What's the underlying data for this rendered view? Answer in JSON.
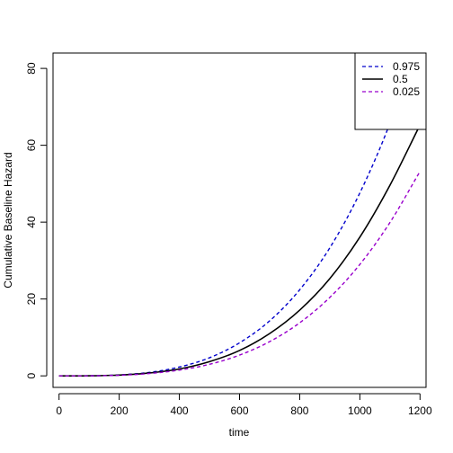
{
  "chart_data": {
    "type": "line",
    "xlabel": "time",
    "ylabel": "Cumulative Baseline Hazard",
    "xlim": [
      -20,
      1220
    ],
    "ylim": [
      -3,
      84
    ],
    "x_ticks": [
      0,
      200,
      400,
      600,
      800,
      1000,
      1200
    ],
    "y_ticks": [
      0,
      20,
      40,
      60,
      80
    ],
    "grid": false,
    "legend_position": "top-right",
    "x": [
      0,
      100,
      200,
      300,
      400,
      500,
      600,
      700,
      800,
      900,
      1000,
      1100,
      1200
    ],
    "series": [
      {
        "name": "0.975",
        "color": "#0000cc",
        "dash": "dashed",
        "values": [
          0,
          0.02,
          0.25,
          0.9,
          2.3,
          4.7,
          8.6,
          14.3,
          22.4,
          33.3,
          47.6,
          65.7,
          88.1
        ]
      },
      {
        "name": "0.5",
        "color": "#000000",
        "dash": "solid",
        "values": [
          0,
          0.02,
          0.2,
          0.75,
          1.8,
          3.7,
          6.6,
          11,
          17.1,
          25.3,
          36.1,
          49.6,
          65.3
        ]
      },
      {
        "name": "0.025",
        "color": "#9900cc",
        "dash": "dashed",
        "values": [
          0,
          0.01,
          0.15,
          0.6,
          1.5,
          3,
          5.4,
          8.9,
          13.8,
          20.4,
          29,
          39.9,
          53.2
        ]
      }
    ]
  }
}
